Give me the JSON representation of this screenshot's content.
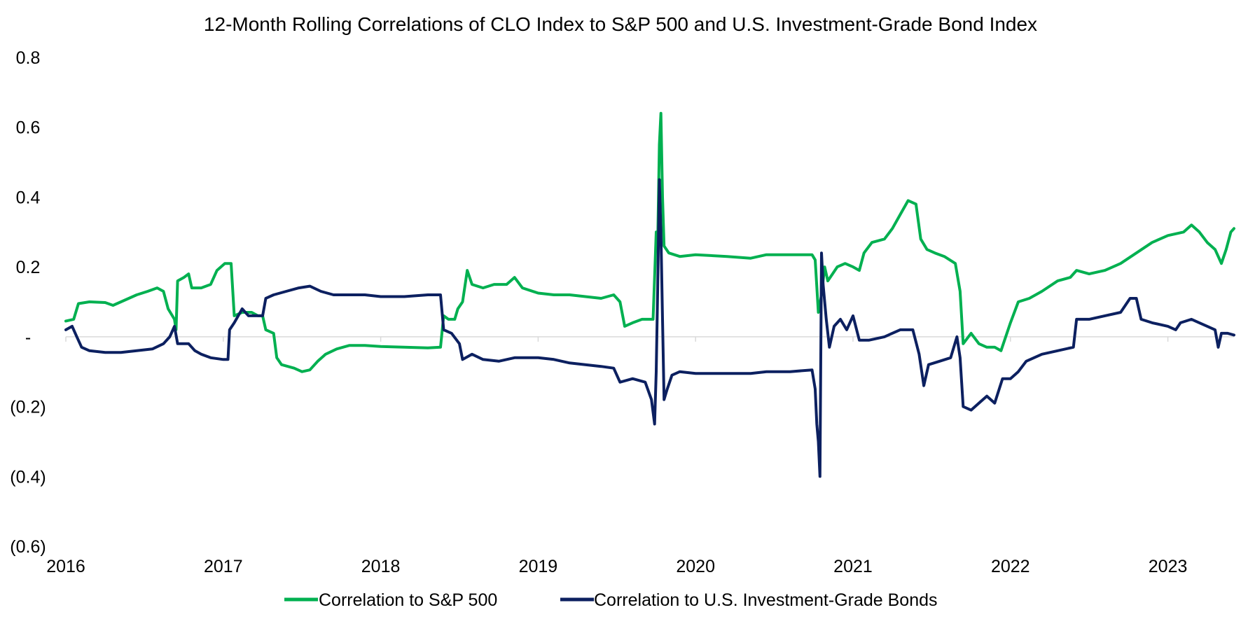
{
  "chart_data": {
    "type": "line",
    "title": "12-Month Rolling Correlations of CLO Index to S&P 500 and U.S. Investment-Grade Bond Index",
    "xlabel": "",
    "ylabel": "",
    "ylim": [
      -0.6,
      0.8
    ],
    "xlim": [
      2016.0,
      2023.42
    ],
    "y_ticks": [
      0.8,
      0.6,
      0.4,
      0.2,
      0.0,
      -0.2,
      -0.4,
      -0.6
    ],
    "y_tick_labels": [
      "0.8",
      "0.6",
      "0.4",
      "0.2",
      "-",
      "(0.2)",
      "(0.4)",
      "(0.6)"
    ],
    "x_ticks": [
      2016,
      2017,
      2018,
      2019,
      2020,
      2021,
      2022,
      2023
    ],
    "x_tick_labels": [
      "2016",
      "2017",
      "2018",
      "2019",
      "2020",
      "2021",
      "2022",
      "2023"
    ],
    "grid": false,
    "legend_position": "bottom",
    "colors": {
      "sp500": "#00b050",
      "bonds": "#0c2060",
      "zero_line": "#d9d9d9"
    },
    "series": [
      {
        "name": "Correlation to S&P 500",
        "color": "#00b050",
        "points": [
          [
            2016.0,
            0.045
          ],
          [
            2016.05,
            0.05
          ],
          [
            2016.08,
            0.095
          ],
          [
            2016.15,
            0.1
          ],
          [
            2016.25,
            0.098
          ],
          [
            2016.3,
            0.09
          ],
          [
            2016.35,
            0.1
          ],
          [
            2016.45,
            0.12
          ],
          [
            2016.52,
            0.13
          ],
          [
            2016.58,
            0.14
          ],
          [
            2016.62,
            0.13
          ],
          [
            2016.65,
            0.08
          ],
          [
            2016.69,
            0.05
          ],
          [
            2016.7,
            0.02
          ],
          [
            2016.71,
            0.16
          ],
          [
            2016.75,
            0.17
          ],
          [
            2016.78,
            0.18
          ],
          [
            2016.8,
            0.14
          ],
          [
            2016.86,
            0.14
          ],
          [
            2016.92,
            0.15
          ],
          [
            2016.96,
            0.19
          ],
          [
            2017.01,
            0.21
          ],
          [
            2017.05,
            0.21
          ],
          [
            2017.07,
            0.06
          ],
          [
            2017.12,
            0.07
          ],
          [
            2017.18,
            0.07
          ],
          [
            2017.22,
            0.06
          ],
          [
            2017.25,
            0.06
          ],
          [
            2017.27,
            0.02
          ],
          [
            2017.32,
            0.01
          ],
          [
            2017.34,
            -0.06
          ],
          [
            2017.37,
            -0.08
          ],
          [
            2017.45,
            -0.09
          ],
          [
            2017.5,
            -0.1
          ],
          [
            2017.55,
            -0.095
          ],
          [
            2017.6,
            -0.07
          ],
          [
            2017.65,
            -0.05
          ],
          [
            2017.72,
            -0.035
          ],
          [
            2017.8,
            -0.025
          ],
          [
            2017.9,
            -0.025
          ],
          [
            2018.0,
            -0.028
          ],
          [
            2018.15,
            -0.03
          ],
          [
            2018.3,
            -0.032
          ],
          [
            2018.38,
            -0.03
          ],
          [
            2018.4,
            0.06
          ],
          [
            2018.43,
            0.05
          ],
          [
            2018.47,
            0.05
          ],
          [
            2018.49,
            0.08
          ],
          [
            2018.52,
            0.1
          ],
          [
            2018.55,
            0.19
          ],
          [
            2018.58,
            0.15
          ],
          [
            2018.65,
            0.14
          ],
          [
            2018.72,
            0.15
          ],
          [
            2018.8,
            0.15
          ],
          [
            2018.85,
            0.17
          ],
          [
            2018.9,
            0.14
          ],
          [
            2019.0,
            0.125
          ],
          [
            2019.1,
            0.12
          ],
          [
            2019.2,
            0.12
          ],
          [
            2019.3,
            0.115
          ],
          [
            2019.4,
            0.11
          ],
          [
            2019.48,
            0.12
          ],
          [
            2019.52,
            0.1
          ],
          [
            2019.55,
            0.03
          ],
          [
            2019.6,
            0.04
          ],
          [
            2019.66,
            0.05
          ],
          [
            2019.7,
            0.05
          ],
          [
            2019.73,
            0.05
          ],
          [
            2019.74,
            0.17
          ],
          [
            2019.75,
            0.3
          ],
          [
            2019.76,
            0.28
          ],
          [
            2019.77,
            0.55
          ],
          [
            2019.78,
            0.64
          ],
          [
            2019.79,
            0.4
          ],
          [
            2019.8,
            0.26
          ],
          [
            2019.83,
            0.24
          ],
          [
            2019.9,
            0.23
          ],
          [
            2020.0,
            0.235
          ],
          [
            2020.2,
            0.23
          ],
          [
            2020.35,
            0.225
          ],
          [
            2020.45,
            0.235
          ],
          [
            2020.6,
            0.235
          ],
          [
            2020.74,
            0.235
          ],
          [
            2020.76,
            0.22
          ],
          [
            2020.78,
            0.07
          ],
          [
            2020.8,
            0.12
          ],
          [
            2020.82,
            0.2
          ],
          [
            2020.84,
            0.16
          ],
          [
            2020.87,
            0.18
          ],
          [
            2020.9,
            0.2
          ],
          [
            2020.95,
            0.21
          ],
          [
            2021.0,
            0.2
          ],
          [
            2021.04,
            0.19
          ],
          [
            2021.07,
            0.24
          ],
          [
            2021.12,
            0.27
          ],
          [
            2021.2,
            0.28
          ],
          [
            2021.25,
            0.31
          ],
          [
            2021.3,
            0.35
          ],
          [
            2021.35,
            0.39
          ],
          [
            2021.4,
            0.38
          ],
          [
            2021.43,
            0.28
          ],
          [
            2021.47,
            0.25
          ],
          [
            2021.52,
            0.24
          ],
          [
            2021.58,
            0.23
          ],
          [
            2021.65,
            0.21
          ],
          [
            2021.68,
            0.13
          ],
          [
            2021.7,
            -0.02
          ],
          [
            2021.75,
            0.01
          ],
          [
            2021.8,
            -0.02
          ],
          [
            2021.85,
            -0.03
          ],
          [
            2021.9,
            -0.03
          ],
          [
            2021.94,
            -0.04
          ],
          [
            2022.0,
            0.04
          ],
          [
            2022.05,
            0.1
          ],
          [
            2022.12,
            0.11
          ],
          [
            2022.2,
            0.13
          ],
          [
            2022.3,
            0.16
          ],
          [
            2022.38,
            0.17
          ],
          [
            2022.42,
            0.19
          ],
          [
            2022.5,
            0.18
          ],
          [
            2022.6,
            0.19
          ],
          [
            2022.7,
            0.21
          ],
          [
            2022.8,
            0.24
          ],
          [
            2022.9,
            0.27
          ],
          [
            2023.0,
            0.29
          ],
          [
            2023.1,
            0.3
          ],
          [
            2023.15,
            0.32
          ],
          [
            2023.2,
            0.3
          ],
          [
            2023.25,
            0.27
          ],
          [
            2023.3,
            0.25
          ],
          [
            2023.34,
            0.21
          ],
          [
            2023.37,
            0.25
          ],
          [
            2023.4,
            0.3
          ],
          [
            2023.42,
            0.31
          ]
        ]
      },
      {
        "name": "Correlation to U.S. Investment-Grade Bonds",
        "color": "#0c2060",
        "points": [
          [
            2016.0,
            0.02
          ],
          [
            2016.04,
            0.03
          ],
          [
            2016.07,
            0.0
          ],
          [
            2016.1,
            -0.03
          ],
          [
            2016.15,
            -0.04
          ],
          [
            2016.25,
            -0.045
          ],
          [
            2016.35,
            -0.045
          ],
          [
            2016.45,
            -0.04
          ],
          [
            2016.55,
            -0.035
          ],
          [
            2016.62,
            -0.02
          ],
          [
            2016.66,
            0.0
          ],
          [
            2016.69,
            0.03
          ],
          [
            2016.71,
            -0.02
          ],
          [
            2016.78,
            -0.02
          ],
          [
            2016.82,
            -0.04
          ],
          [
            2016.86,
            -0.05
          ],
          [
            2016.92,
            -0.06
          ],
          [
            2017.0,
            -0.065
          ],
          [
            2017.03,
            -0.065
          ],
          [
            2017.04,
            0.02
          ],
          [
            2017.07,
            0.04
          ],
          [
            2017.12,
            0.08
          ],
          [
            2017.16,
            0.06
          ],
          [
            2017.2,
            0.06
          ],
          [
            2017.25,
            0.06
          ],
          [
            2017.27,
            0.11
          ],
          [
            2017.32,
            0.12
          ],
          [
            2017.4,
            0.13
          ],
          [
            2017.48,
            0.14
          ],
          [
            2017.55,
            0.145
          ],
          [
            2017.62,
            0.13
          ],
          [
            2017.7,
            0.12
          ],
          [
            2017.8,
            0.12
          ],
          [
            2017.9,
            0.12
          ],
          [
            2018.0,
            0.115
          ],
          [
            2018.15,
            0.115
          ],
          [
            2018.3,
            0.12
          ],
          [
            2018.38,
            0.12
          ],
          [
            2018.4,
            0.02
          ],
          [
            2018.45,
            0.01
          ],
          [
            2018.5,
            -0.02
          ],
          [
            2018.52,
            -0.065
          ],
          [
            2018.58,
            -0.05
          ],
          [
            2018.65,
            -0.065
          ],
          [
            2018.75,
            -0.07
          ],
          [
            2018.85,
            -0.06
          ],
          [
            2019.0,
            -0.06
          ],
          [
            2019.1,
            -0.065
          ],
          [
            2019.2,
            -0.075
          ],
          [
            2019.3,
            -0.08
          ],
          [
            2019.4,
            -0.085
          ],
          [
            2019.48,
            -0.09
          ],
          [
            2019.52,
            -0.13
          ],
          [
            2019.6,
            -0.12
          ],
          [
            2019.68,
            -0.13
          ],
          [
            2019.72,
            -0.18
          ],
          [
            2019.74,
            -0.25
          ],
          [
            2019.75,
            -0.1
          ],
          [
            2019.76,
            0.15
          ],
          [
            2019.77,
            0.45
          ],
          [
            2019.78,
            0.3
          ],
          [
            2019.79,
            0.05
          ],
          [
            2019.8,
            -0.18
          ],
          [
            2019.82,
            -0.15
          ],
          [
            2019.85,
            -0.11
          ],
          [
            2019.9,
            -0.1
          ],
          [
            2020.0,
            -0.105
          ],
          [
            2020.2,
            -0.105
          ],
          [
            2020.35,
            -0.105
          ],
          [
            2020.45,
            -0.1
          ],
          [
            2020.6,
            -0.1
          ],
          [
            2020.74,
            -0.095
          ],
          [
            2020.76,
            -0.15
          ],
          [
            2020.77,
            -0.25
          ],
          [
            2020.78,
            -0.3
          ],
          [
            2020.79,
            -0.4
          ],
          [
            2020.8,
            0.24
          ],
          [
            2020.81,
            0.15
          ],
          [
            2020.83,
            0.05
          ],
          [
            2020.85,
            -0.03
          ],
          [
            2020.88,
            0.03
          ],
          [
            2020.92,
            0.05
          ],
          [
            2020.96,
            0.02
          ],
          [
            2021.0,
            0.06
          ],
          [
            2021.04,
            -0.01
          ],
          [
            2021.1,
            -0.01
          ],
          [
            2021.2,
            0.0
          ],
          [
            2021.3,
            0.02
          ],
          [
            2021.38,
            0.02
          ],
          [
            2021.42,
            -0.05
          ],
          [
            2021.45,
            -0.14
          ],
          [
            2021.48,
            -0.08
          ],
          [
            2021.55,
            -0.07
          ],
          [
            2021.62,
            -0.06
          ],
          [
            2021.66,
            0.0
          ],
          [
            2021.68,
            -0.06
          ],
          [
            2021.7,
            -0.2
          ],
          [
            2021.75,
            -0.21
          ],
          [
            2021.8,
            -0.19
          ],
          [
            2021.85,
            -0.17
          ],
          [
            2021.9,
            -0.19
          ],
          [
            2021.95,
            -0.12
          ],
          [
            2022.0,
            -0.12
          ],
          [
            2022.05,
            -0.1
          ],
          [
            2022.1,
            -0.07
          ],
          [
            2022.2,
            -0.05
          ],
          [
            2022.3,
            -0.04
          ],
          [
            2022.4,
            -0.03
          ],
          [
            2022.42,
            0.05
          ],
          [
            2022.5,
            0.05
          ],
          [
            2022.6,
            0.06
          ],
          [
            2022.7,
            0.07
          ],
          [
            2022.76,
            0.11
          ],
          [
            2022.8,
            0.11
          ],
          [
            2022.83,
            0.05
          ],
          [
            2022.9,
            0.04
          ],
          [
            2023.0,
            0.03
          ],
          [
            2023.05,
            0.02
          ],
          [
            2023.08,
            0.04
          ],
          [
            2023.15,
            0.05
          ],
          [
            2023.2,
            0.04
          ],
          [
            2023.25,
            0.03
          ],
          [
            2023.3,
            0.02
          ],
          [
            2023.32,
            -0.03
          ],
          [
            2023.34,
            0.01
          ],
          [
            2023.38,
            0.01
          ],
          [
            2023.42,
            0.005
          ]
        ]
      }
    ]
  }
}
